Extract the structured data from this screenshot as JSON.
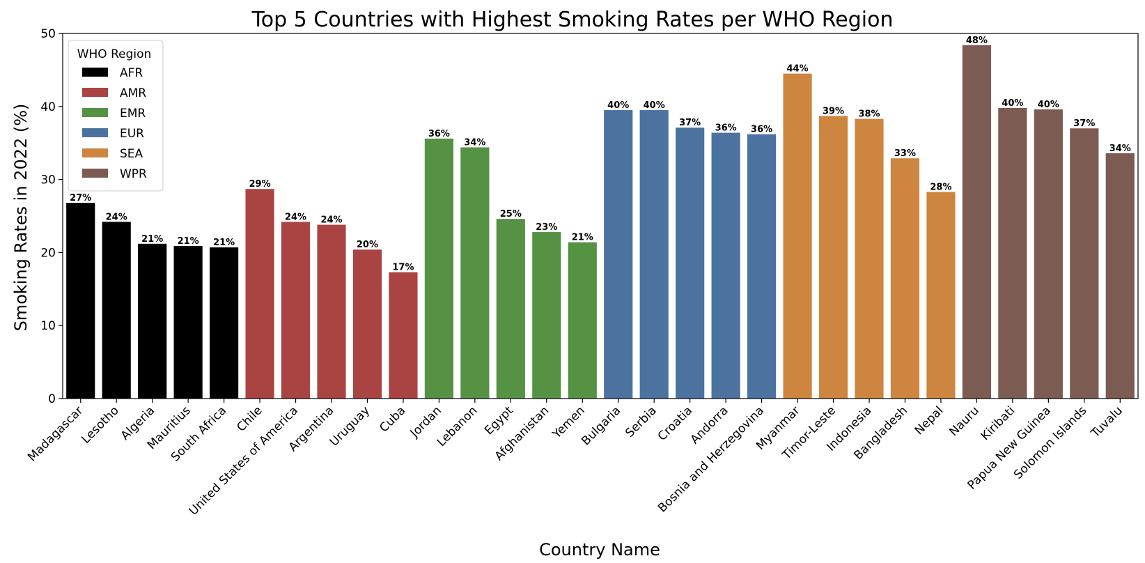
{
  "chart_data": {
    "type": "bar",
    "title": "Top 5 Countries with Highest Smoking Rates per WHO Region",
    "xlabel": "Country Name",
    "ylabel": "Smoking Rates in 2022 (%)",
    "ylim": [
      0,
      50
    ],
    "yticks": [
      0,
      10,
      20,
      30,
      40,
      50
    ],
    "grid": false,
    "legend": {
      "title": "WHO Region",
      "placement": "top-left",
      "entries": [
        {
          "name": "AFR",
          "color": "#000000"
        },
        {
          "name": "AMR",
          "color": "#a94442"
        },
        {
          "name": "EMR",
          "color": "#559244"
        },
        {
          "name": "EUR",
          "color": "#4c72a0"
        },
        {
          "name": "SEA",
          "color": "#cd853f"
        },
        {
          "name": "WPR",
          "color": "#7b5b52"
        }
      ]
    },
    "bars": [
      {
        "category": "Madagascar",
        "region": "AFR",
        "value": 26.8,
        "label": "27%"
      },
      {
        "category": "Lesotho",
        "region": "AFR",
        "value": 24.2,
        "label": "24%"
      },
      {
        "category": "Algeria",
        "region": "AFR",
        "value": 21.2,
        "label": "21%"
      },
      {
        "category": "Mauritius",
        "region": "AFR",
        "value": 20.9,
        "label": "21%"
      },
      {
        "category": "South Africa",
        "region": "AFR",
        "value": 20.7,
        "label": "21%"
      },
      {
        "category": "Chile",
        "region": "AMR",
        "value": 28.7,
        "label": "29%"
      },
      {
        "category": "United States of America",
        "region": "AMR",
        "value": 24.2,
        "label": "24%"
      },
      {
        "category": "Argentina",
        "region": "AMR",
        "value": 23.8,
        "label": "24%"
      },
      {
        "category": "Uruguay",
        "region": "AMR",
        "value": 20.4,
        "label": "20%"
      },
      {
        "category": "Cuba",
        "region": "AMR",
        "value": 17.3,
        "label": "17%"
      },
      {
        "category": "Jordan",
        "region": "EMR",
        "value": 35.6,
        "label": "36%"
      },
      {
        "category": "Lebanon",
        "region": "EMR",
        "value": 34.4,
        "label": "34%"
      },
      {
        "category": "Egypt",
        "region": "EMR",
        "value": 24.6,
        "label": "25%"
      },
      {
        "category": "Afghanistan",
        "region": "EMR",
        "value": 22.8,
        "label": "23%"
      },
      {
        "category": "Yemen",
        "region": "EMR",
        "value": 21.4,
        "label": "21%"
      },
      {
        "category": "Bulgaria",
        "region": "EUR",
        "value": 39.5,
        "label": "40%"
      },
      {
        "category": "Serbia",
        "region": "EUR",
        "value": 39.5,
        "label": "40%"
      },
      {
        "category": "Croatia",
        "region": "EUR",
        "value": 37.1,
        "label": "37%"
      },
      {
        "category": "Andorra",
        "region": "EUR",
        "value": 36.4,
        "label": "36%"
      },
      {
        "category": "Bosnia and Herzegovina",
        "region": "EUR",
        "value": 36.2,
        "label": "36%"
      },
      {
        "category": "Myanmar",
        "region": "SEA",
        "value": 44.5,
        "label": "44%"
      },
      {
        "category": "Timor-Leste",
        "region": "SEA",
        "value": 38.7,
        "label": "39%"
      },
      {
        "category": "Indonesia",
        "region": "SEA",
        "value": 38.3,
        "label": "38%"
      },
      {
        "category": "Bangladesh",
        "region": "SEA",
        "value": 32.9,
        "label": "33%"
      },
      {
        "category": "Nepal",
        "region": "SEA",
        "value": 28.3,
        "label": "28%"
      },
      {
        "category": "Nauru",
        "region": "WPR",
        "value": 48.4,
        "label": "48%"
      },
      {
        "category": "Kiribati",
        "region": "WPR",
        "value": 39.8,
        "label": "40%"
      },
      {
        "category": "Papua New Guinea",
        "region": "WPR",
        "value": 39.6,
        "label": "40%"
      },
      {
        "category": "Solomon Islands",
        "region": "WPR",
        "value": 37.0,
        "label": "37%"
      },
      {
        "category": "Tuvalu",
        "region": "WPR",
        "value": 33.6,
        "label": "34%"
      }
    ]
  }
}
